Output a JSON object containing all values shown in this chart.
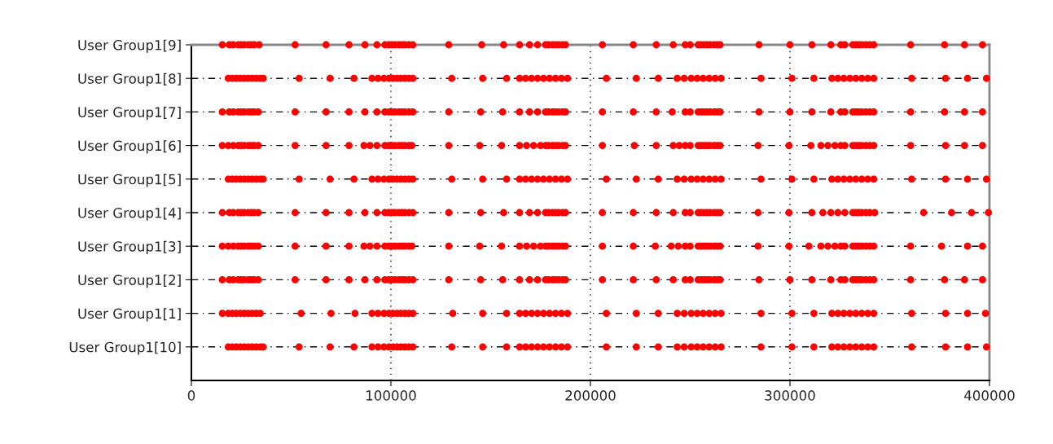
{
  "chart_data": {
    "type": "scatter",
    "orientation": "horizontal",
    "categories": [
      "User Group1[9]",
      "User Group1[8]",
      "User Group1[7]",
      "User Group1[6]",
      "User Group1[5]",
      "User Group1[4]",
      "User Group1[3]",
      "User Group1[2]",
      "User Group1[1]",
      "User Group1[10]"
    ],
    "series": [
      {
        "color": "#ff0000",
        "values": [
          15500,
          19000,
          21000,
          23500,
          25000,
          26500,
          28500,
          30000,
          31500,
          34000,
          52000,
          67500,
          79000,
          87000,
          93000,
          97000,
          99000,
          100500,
          102000,
          104000,
          105500,
          107000,
          109000,
          111000,
          129000,
          145500,
          156500,
          164500,
          169500,
          173500,
          177500,
          179000,
          181000,
          182500,
          184000,
          186000,
          187500,
          206000,
          221500,
          233000,
          241500,
          247500,
          250000,
          254000,
          255500,
          257000,
          258500,
          260000,
          262000,
          263500,
          265000,
          284500,
          300000,
          311000,
          320500,
          325500,
          327500,
          331500,
          333000,
          334500,
          336000,
          338000,
          340000,
          342000,
          360500,
          377500,
          387500,
          396500
        ],
        "x": [
          "User Group1[9]",
          "User Group1[9]",
          "User Group1[9]",
          "User Group1[9]",
          "User Group1[9]",
          "User Group1[9]",
          "User Group1[9]",
          "User Group1[9]",
          "User Group1[9]",
          "User Group1[9]",
          "User Group1[9]",
          "User Group1[9]",
          "User Group1[9]",
          "User Group1[9]",
          "User Group1[9]",
          "User Group1[9]",
          "User Group1[9]",
          "User Group1[9]",
          "User Group1[9]",
          "User Group1[9]",
          "User Group1[9]",
          "User Group1[9]",
          "User Group1[9]",
          "User Group1[9]",
          "User Group1[9]",
          "User Group1[9]",
          "User Group1[9]",
          "User Group1[9]",
          "User Group1[9]",
          "User Group1[9]",
          "User Group1[9]",
          "User Group1[9]",
          "User Group1[9]",
          "User Group1[9]",
          "User Group1[9]",
          "User Group1[9]",
          "User Group1[9]",
          "User Group1[9]",
          "User Group1[9]",
          "User Group1[9]",
          "User Group1[9]",
          "User Group1[9]",
          "User Group1[9]",
          "User Group1[9]",
          "User Group1[9]",
          "User Group1[9]",
          "User Group1[9]",
          "User Group1[9]",
          "User Group1[9]",
          "User Group1[9]",
          "User Group1[9]",
          "User Group1[9]",
          "User Group1[9]",
          "User Group1[9]",
          "User Group1[9]",
          "User Group1[9]",
          "User Group1[9]",
          "User Group1[9]",
          "User Group1[9]",
          "User Group1[9]",
          "User Group1[9]",
          "User Group1[9]",
          "User Group1[9]",
          "User Group1[9]",
          "User Group1[9]",
          "User Group1[9]",
          "User Group1[9]",
          "User Group1[9]"
        ]
      },
      {
        "color": "#ff0000",
        "values": [
          18500,
          20500,
          22500,
          24500,
          26500,
          28500,
          30500,
          32500,
          34500,
          36000,
          54000,
          69500,
          81500,
          90500,
          93500,
          96500,
          99000,
          101000,
          103000,
          105000,
          107000,
          109000,
          111000,
          130500,
          146000,
          158000,
          164500,
          167500,
          170500,
          173500,
          176500,
          179500,
          182500,
          185500,
          188500,
          208000,
          223000,
          234000,
          243500,
          247000,
          250500,
          253500,
          256500,
          259500,
          262500,
          265500,
          285500,
          301000,
          312000,
          321000,
          324000,
          327000,
          330000,
          333000,
          336000,
          339000,
          342000,
          361000,
          378000,
          389000,
          398500
        ],
        "x": [
          "User Group1[8]",
          "User Group1[8]",
          "User Group1[8]",
          "User Group1[8]",
          "User Group1[8]",
          "User Group1[8]",
          "User Group1[8]",
          "User Group1[8]",
          "User Group1[8]",
          "User Group1[8]",
          "User Group1[8]",
          "User Group1[8]",
          "User Group1[8]",
          "User Group1[8]",
          "User Group1[8]",
          "User Group1[8]",
          "User Group1[8]",
          "User Group1[8]",
          "User Group1[8]",
          "User Group1[8]",
          "User Group1[8]",
          "User Group1[8]",
          "User Group1[8]",
          "User Group1[8]",
          "User Group1[8]",
          "User Group1[8]",
          "User Group1[8]",
          "User Group1[8]",
          "User Group1[8]",
          "User Group1[8]",
          "User Group1[8]",
          "User Group1[8]",
          "User Group1[8]",
          "User Group1[8]",
          "User Group1[8]",
          "User Group1[8]",
          "User Group1[8]",
          "User Group1[8]",
          "User Group1[8]",
          "User Group1[8]",
          "User Group1[8]",
          "User Group1[8]",
          "User Group1[8]",
          "User Group1[8]",
          "User Group1[8]",
          "User Group1[8]",
          "User Group1[8]",
          "User Group1[8]",
          "User Group1[8]",
          "User Group1[8]",
          "User Group1[8]",
          "User Group1[8]",
          "User Group1[8]",
          "User Group1[8]",
          "User Group1[8]",
          "User Group1[8]",
          "User Group1[8]",
          "User Group1[8]",
          "User Group1[8]",
          "User Group1[8]",
          "User Group1[8]"
        ]
      },
      {
        "color": "#ff0000",
        "values": [
          15500,
          19000,
          21000,
          23500,
          25000,
          26500,
          28500,
          30000,
          31500,
          33500,
          52000,
          67500,
          79000,
          87000,
          93000,
          97000,
          99000,
          100500,
          102000,
          104000,
          105500,
          107000,
          109000,
          111000,
          129000,
          145000,
          156000,
          164500,
          169500,
          173500,
          177500,
          179000,
          181000,
          182500,
          184000,
          186000,
          187500,
          206000,
          221500,
          233000,
          241000,
          247500,
          250000,
          254000,
          255500,
          257000,
          258500,
          260000,
          262000,
          263500,
          265000,
          284500,
          300000,
          311000,
          320500,
          325500,
          327500,
          331500,
          333000,
          334500,
          336000,
          338000,
          340000,
          342000,
          360500,
          377500,
          387500,
          396500
        ],
        "x": [
          "User Group1[7]",
          "User Group1[7]",
          "User Group1[7]",
          "User Group1[7]",
          "User Group1[7]",
          "User Group1[7]",
          "User Group1[7]",
          "User Group1[7]",
          "User Group1[7]",
          "User Group1[7]",
          "User Group1[7]",
          "User Group1[7]",
          "User Group1[7]",
          "User Group1[7]",
          "User Group1[7]",
          "User Group1[7]",
          "User Group1[7]",
          "User Group1[7]",
          "User Group1[7]",
          "User Group1[7]",
          "User Group1[7]",
          "User Group1[7]",
          "User Group1[7]",
          "User Group1[7]",
          "User Group1[7]",
          "User Group1[7]",
          "User Group1[7]",
          "User Group1[7]",
          "User Group1[7]",
          "User Group1[7]",
          "User Group1[7]",
          "User Group1[7]",
          "User Group1[7]",
          "User Group1[7]",
          "User Group1[7]",
          "User Group1[7]",
          "User Group1[7]",
          "User Group1[7]",
          "User Group1[7]",
          "User Group1[7]",
          "User Group1[7]",
          "User Group1[7]",
          "User Group1[7]",
          "User Group1[7]",
          "User Group1[7]",
          "User Group1[7]",
          "User Group1[7]",
          "User Group1[7]",
          "User Group1[7]",
          "User Group1[7]",
          "User Group1[7]",
          "User Group1[7]",
          "User Group1[7]",
          "User Group1[7]",
          "User Group1[7]",
          "User Group1[7]",
          "User Group1[7]",
          "User Group1[7]",
          "User Group1[7]",
          "User Group1[7]",
          "User Group1[7]",
          "User Group1[7]",
          "User Group1[7]",
          "User Group1[7]",
          "User Group1[7]",
          "User Group1[7]",
          "User Group1[7]",
          "User Group1[7]"
        ]
      },
      {
        "color": "#ff0000",
        "values": [
          15500,
          18500,
          21000,
          23500,
          25000,
          26500,
          28500,
          30000,
          31500,
          33500,
          52000,
          67500,
          79000,
          86500,
          89500,
          93000,
          97000,
          99000,
          100500,
          102000,
          104000,
          105500,
          107000,
          109000,
          110500,
          129000,
          144500,
          155500,
          164500,
          168000,
          171500,
          175000,
          177500,
          179000,
          181000,
          182500,
          184000,
          186000,
          187500,
          206000,
          222000,
          233000,
          241500,
          244500,
          247500,
          250000,
          254000,
          255500,
          257000,
          258500,
          260000,
          262000,
          263500,
          265000,
          284000,
          299500,
          310500,
          315500,
          319000,
          322500,
          325500,
          327500,
          331500,
          333000,
          334500,
          336000,
          338000,
          340000,
          342000,
          360500,
          378000,
          387500,
          396500
        ],
        "x": [
          "User Group1[6]",
          "User Group1[6]",
          "User Group1[6]",
          "User Group1[6]",
          "User Group1[6]",
          "User Group1[6]",
          "User Group1[6]",
          "User Group1[6]",
          "User Group1[6]",
          "User Group1[6]",
          "User Group1[6]",
          "User Group1[6]",
          "User Group1[6]",
          "User Group1[6]",
          "User Group1[6]",
          "User Group1[6]",
          "User Group1[6]",
          "User Group1[6]",
          "User Group1[6]",
          "User Group1[6]",
          "User Group1[6]",
          "User Group1[6]",
          "User Group1[6]",
          "User Group1[6]",
          "User Group1[6]",
          "User Group1[6]",
          "User Group1[6]",
          "User Group1[6]",
          "User Group1[6]",
          "User Group1[6]",
          "User Group1[6]",
          "User Group1[6]",
          "User Group1[6]",
          "User Group1[6]",
          "User Group1[6]",
          "User Group1[6]",
          "User Group1[6]",
          "User Group1[6]",
          "User Group1[6]",
          "User Group1[6]",
          "User Group1[6]",
          "User Group1[6]",
          "User Group1[6]",
          "User Group1[6]",
          "User Group1[6]",
          "User Group1[6]",
          "User Group1[6]",
          "User Group1[6]",
          "User Group1[6]",
          "User Group1[6]",
          "User Group1[6]",
          "User Group1[6]",
          "User Group1[6]",
          "User Group1[6]",
          "User Group1[6]",
          "User Group1[6]",
          "User Group1[6]",
          "User Group1[6]",
          "User Group1[6]",
          "User Group1[6]",
          "User Group1[6]",
          "User Group1[6]",
          "User Group1[6]",
          "User Group1[6]",
          "User Group1[6]",
          "User Group1[6]",
          "User Group1[6]",
          "User Group1[6]",
          "User Group1[6]",
          "User Group1[6]",
          "User Group1[6]",
          "User Group1[6]",
          "User Group1[6]"
        ]
      },
      {
        "color": "#ff0000",
        "values": [
          18500,
          20500,
          22500,
          24500,
          26500,
          28500,
          30500,
          32500,
          34500,
          36000,
          54000,
          69500,
          81500,
          90500,
          93500,
          96500,
          99000,
          101000,
          103000,
          105000,
          107000,
          109000,
          111000,
          130500,
          146000,
          158000,
          164500,
          167500,
          170500,
          173500,
          176500,
          179500,
          182500,
          185500,
          188500,
          208000,
          223000,
          234000,
          243500,
          247000,
          250500,
          253500,
          256500,
          259500,
          262500,
          265500,
          285500,
          301000,
          312000,
          321000,
          324000,
          327000,
          330000,
          333000,
          336000,
          339000,
          342000,
          361000,
          378000,
          389000,
          398500
        ],
        "x": [
          "User Group1[5]",
          "User Group1[5]",
          "User Group1[5]",
          "User Group1[5]",
          "User Group1[5]",
          "User Group1[5]",
          "User Group1[5]",
          "User Group1[5]",
          "User Group1[5]",
          "User Group1[5]",
          "User Group1[5]",
          "User Group1[5]",
          "User Group1[5]",
          "User Group1[5]",
          "User Group1[5]",
          "User Group1[5]",
          "User Group1[5]",
          "User Group1[5]",
          "User Group1[5]",
          "User Group1[5]",
          "User Group1[5]",
          "User Group1[5]",
          "User Group1[5]",
          "User Group1[5]",
          "User Group1[5]",
          "User Group1[5]",
          "User Group1[5]",
          "User Group1[5]",
          "User Group1[5]",
          "User Group1[5]",
          "User Group1[5]",
          "User Group1[5]",
          "User Group1[5]",
          "User Group1[5]",
          "User Group1[5]",
          "User Group1[5]",
          "User Group1[5]",
          "User Group1[5]",
          "User Group1[5]",
          "User Group1[5]",
          "User Group1[5]",
          "User Group1[5]",
          "User Group1[5]",
          "User Group1[5]",
          "User Group1[5]",
          "User Group1[5]",
          "User Group1[5]",
          "User Group1[5]",
          "User Group1[5]",
          "User Group1[5]",
          "User Group1[5]",
          "User Group1[5]",
          "User Group1[5]",
          "User Group1[5]",
          "User Group1[5]",
          "User Group1[5]",
          "User Group1[5]",
          "User Group1[5]",
          "User Group1[5]",
          "User Group1[5]",
          "User Group1[5]"
        ]
      },
      {
        "color": "#ff0000",
        "values": [
          15500,
          19000,
          21000,
          23500,
          25000,
          26500,
          28500,
          30000,
          31500,
          33500,
          52000,
          67500,
          79000,
          87000,
          93000,
          97000,
          99000,
          100500,
          102000,
          104000,
          105500,
          107000,
          109000,
          111000,
          129000,
          145000,
          156500,
          164500,
          169500,
          173500,
          177500,
          179000,
          181000,
          182500,
          184000,
          186000,
          187500,
          206000,
          221500,
          233000,
          241500,
          247500,
          250000,
          254000,
          255500,
          257000,
          258500,
          260000,
          262000,
          263500,
          265000,
          284000,
          299500,
          311000,
          316500,
          320500,
          324000,
          327500,
          331500,
          333000,
          334500,
          336000,
          338000,
          340000,
          342500,
          367000,
          381000,
          391000,
          399500
        ],
        "x": [
          "User Group1[4]",
          "User Group1[4]",
          "User Group1[4]",
          "User Group1[4]",
          "User Group1[4]",
          "User Group1[4]",
          "User Group1[4]",
          "User Group1[4]",
          "User Group1[4]",
          "User Group1[4]",
          "User Group1[4]",
          "User Group1[4]",
          "User Group1[4]",
          "User Group1[4]",
          "User Group1[4]",
          "User Group1[4]",
          "User Group1[4]",
          "User Group1[4]",
          "User Group1[4]",
          "User Group1[4]",
          "User Group1[4]",
          "User Group1[4]",
          "User Group1[4]",
          "User Group1[4]",
          "User Group1[4]",
          "User Group1[4]",
          "User Group1[4]",
          "User Group1[4]",
          "User Group1[4]",
          "User Group1[4]",
          "User Group1[4]",
          "User Group1[4]",
          "User Group1[4]",
          "User Group1[4]",
          "User Group1[4]",
          "User Group1[4]",
          "User Group1[4]",
          "User Group1[4]",
          "User Group1[4]",
          "User Group1[4]",
          "User Group1[4]",
          "User Group1[4]",
          "User Group1[4]",
          "User Group1[4]",
          "User Group1[4]",
          "User Group1[4]",
          "User Group1[4]",
          "User Group1[4]",
          "User Group1[4]",
          "User Group1[4]",
          "User Group1[4]",
          "User Group1[4]",
          "User Group1[4]",
          "User Group1[4]",
          "User Group1[4]",
          "User Group1[4]",
          "User Group1[4]",
          "User Group1[4]",
          "User Group1[4]",
          "User Group1[4]",
          "User Group1[4]",
          "User Group1[4]",
          "User Group1[4]",
          "User Group1[4]",
          "User Group1[4]",
          "User Group1[4]",
          "User Group1[4]",
          "User Group1[4]",
          "User Group1[4]"
        ]
      },
      {
        "color": "#ff0000",
        "values": [
          15500,
          18500,
          21000,
          23500,
          25000,
          26500,
          28500,
          30000,
          31500,
          33500,
          52000,
          67500,
          79000,
          86500,
          89500,
          93000,
          97000,
          99000,
          100500,
          102000,
          104000,
          105500,
          107000,
          109000,
          110500,
          129000,
          144500,
          155500,
          164500,
          168000,
          171500,
          175000,
          177500,
          179000,
          181000,
          182500,
          184000,
          186000,
          187500,
          206000,
          221500,
          232500,
          240500,
          244000,
          247500,
          250000,
          254000,
          255500,
          257000,
          258500,
          260000,
          262000,
          263500,
          265000,
          284000,
          299500,
          309500,
          315500,
          319000,
          322500,
          325500,
          327500,
          331500,
          333000,
          334500,
          336000,
          338000,
          340000,
          342000,
          360500,
          376000,
          389000,
          396500
        ],
        "x": [
          "User Group1[3]",
          "User Group1[3]",
          "User Group1[3]",
          "User Group1[3]",
          "User Group1[3]",
          "User Group1[3]",
          "User Group1[3]",
          "User Group1[3]",
          "User Group1[3]",
          "User Group1[3]",
          "User Group1[3]",
          "User Group1[3]",
          "User Group1[3]",
          "User Group1[3]",
          "User Group1[3]",
          "User Group1[3]",
          "User Group1[3]",
          "User Group1[3]",
          "User Group1[3]",
          "User Group1[3]",
          "User Group1[3]",
          "User Group1[3]",
          "User Group1[3]",
          "User Group1[3]",
          "User Group1[3]",
          "User Group1[3]",
          "User Group1[3]",
          "User Group1[3]",
          "User Group1[3]",
          "User Group1[3]",
          "User Group1[3]",
          "User Group1[3]",
          "User Group1[3]",
          "User Group1[3]",
          "User Group1[3]",
          "User Group1[3]",
          "User Group1[3]",
          "User Group1[3]",
          "User Group1[3]",
          "User Group1[3]",
          "User Group1[3]",
          "User Group1[3]",
          "User Group1[3]",
          "User Group1[3]",
          "User Group1[3]",
          "User Group1[3]",
          "User Group1[3]",
          "User Group1[3]",
          "User Group1[3]",
          "User Group1[3]",
          "User Group1[3]",
          "User Group1[3]",
          "User Group1[3]",
          "User Group1[3]",
          "User Group1[3]",
          "User Group1[3]",
          "User Group1[3]",
          "User Group1[3]",
          "User Group1[3]",
          "User Group1[3]",
          "User Group1[3]",
          "User Group1[3]",
          "User Group1[3]",
          "User Group1[3]",
          "User Group1[3]",
          "User Group1[3]",
          "User Group1[3]",
          "User Group1[3]",
          "User Group1[3]",
          "User Group1[3]",
          "User Group1[3]",
          "User Group1[3]",
          "User Group1[3]"
        ]
      },
      {
        "color": "#ff0000",
        "values": [
          15500,
          19000,
          21000,
          23500,
          25000,
          26500,
          28500,
          30000,
          31500,
          33500,
          52000,
          67500,
          79000,
          87000,
          93000,
          97000,
          99000,
          100500,
          102000,
          104000,
          105500,
          107000,
          109000,
          111000,
          129000,
          145000,
          156000,
          164500,
          169500,
          173500,
          177500,
          179000,
          181000,
          182500,
          184000,
          186000,
          187500,
          206000,
          221500,
          233000,
          241500,
          247500,
          250000,
          254000,
          255500,
          257000,
          258500,
          260000,
          262000,
          263500,
          265000,
          284500,
          300000,
          311000,
          320500,
          325500,
          327500,
          331500,
          333000,
          334500,
          336000,
          338000,
          340000,
          342000,
          360500,
          377500,
          387500,
          396500
        ],
        "x": [
          "User Group1[2]",
          "User Group1[2]",
          "User Group1[2]",
          "User Group1[2]",
          "User Group1[2]",
          "User Group1[2]",
          "User Group1[2]",
          "User Group1[2]",
          "User Group1[2]",
          "User Group1[2]",
          "User Group1[2]",
          "User Group1[2]",
          "User Group1[2]",
          "User Group1[2]",
          "User Group1[2]",
          "User Group1[2]",
          "User Group1[2]",
          "User Group1[2]",
          "User Group1[2]",
          "User Group1[2]",
          "User Group1[2]",
          "User Group1[2]",
          "User Group1[2]",
          "User Group1[2]",
          "User Group1[2]",
          "User Group1[2]",
          "User Group1[2]",
          "User Group1[2]",
          "User Group1[2]",
          "User Group1[2]",
          "User Group1[2]",
          "User Group1[2]",
          "User Group1[2]",
          "User Group1[2]",
          "User Group1[2]",
          "User Group1[2]",
          "User Group1[2]",
          "User Group1[2]",
          "User Group1[2]",
          "User Group1[2]",
          "User Group1[2]",
          "User Group1[2]",
          "User Group1[2]",
          "User Group1[2]",
          "User Group1[2]",
          "User Group1[2]",
          "User Group1[2]",
          "User Group1[2]",
          "User Group1[2]",
          "User Group1[2]",
          "User Group1[2]",
          "User Group1[2]",
          "User Group1[2]",
          "User Group1[2]",
          "User Group1[2]",
          "User Group1[2]",
          "User Group1[2]",
          "User Group1[2]",
          "User Group1[2]",
          "User Group1[2]",
          "User Group1[2]",
          "User Group1[2]",
          "User Group1[2]",
          "User Group1[2]",
          "User Group1[2]",
          "User Group1[2]",
          "User Group1[2]",
          "User Group1[2]"
        ]
      },
      {
        "color": "#ff0000",
        "values": [
          15500,
          18500,
          20500,
          22500,
          24500,
          26500,
          28500,
          30500,
          32500,
          34500,
          55000,
          70000,
          82000,
          90500,
          93500,
          96500,
          99000,
          101000,
          103000,
          105000,
          107000,
          109000,
          111000,
          131000,
          146000,
          158000,
          164500,
          167500,
          170500,
          173500,
          176500,
          179500,
          182500,
          185500,
          188500,
          208000,
          223000,
          234000,
          243500,
          247000,
          250500,
          253500,
          256500,
          259500,
          262500,
          265500,
          285500,
          301000,
          312000,
          321000,
          324000,
          327000,
          330000,
          333000,
          336000,
          339000,
          342000,
          361000,
          378000,
          389000,
          398000
        ],
        "x": [
          "User Group1[1]",
          "User Group1[1]",
          "User Group1[1]",
          "User Group1[1]",
          "User Group1[1]",
          "User Group1[1]",
          "User Group1[1]",
          "User Group1[1]",
          "User Group1[1]",
          "User Group1[1]",
          "User Group1[1]",
          "User Group1[1]",
          "User Group1[1]",
          "User Group1[1]",
          "User Group1[1]",
          "User Group1[1]",
          "User Group1[1]",
          "User Group1[1]",
          "User Group1[1]",
          "User Group1[1]",
          "User Group1[1]",
          "User Group1[1]",
          "User Group1[1]",
          "User Group1[1]",
          "User Group1[1]",
          "User Group1[1]",
          "User Group1[1]",
          "User Group1[1]",
          "User Group1[1]",
          "User Group1[1]",
          "User Group1[1]",
          "User Group1[1]",
          "User Group1[1]",
          "User Group1[1]",
          "User Group1[1]",
          "User Group1[1]",
          "User Group1[1]",
          "User Group1[1]",
          "User Group1[1]",
          "User Group1[1]",
          "User Group1[1]",
          "User Group1[1]",
          "User Group1[1]",
          "User Group1[1]",
          "User Group1[1]",
          "User Group1[1]",
          "User Group1[1]",
          "User Group1[1]",
          "User Group1[1]",
          "User Group1[1]",
          "User Group1[1]",
          "User Group1[1]",
          "User Group1[1]",
          "User Group1[1]",
          "User Group1[1]",
          "User Group1[1]",
          "User Group1[1]",
          "User Group1[1]",
          "User Group1[1]",
          "User Group1[1]",
          "User Group1[1]"
        ]
      },
      {
        "color": "#ff0000",
        "values": [
          18500,
          20500,
          22500,
          24500,
          26500,
          28500,
          30500,
          32500,
          34500,
          36000,
          54000,
          69500,
          81500,
          90500,
          93500,
          96500,
          99000,
          101000,
          103000,
          105000,
          107000,
          109000,
          111000,
          130500,
          146000,
          158000,
          164500,
          167500,
          170500,
          173500,
          176500,
          179500,
          182500,
          185500,
          188500,
          208000,
          223000,
          234000,
          243500,
          247000,
          250500,
          253500,
          256500,
          259500,
          262500,
          265500,
          285500,
          301000,
          312000,
          321000,
          324000,
          327000,
          330000,
          333000,
          336000,
          339000,
          342000,
          361000,
          378000,
          389000,
          398500
        ],
        "x": [
          "User Group1[10]",
          "User Group1[10]",
          "User Group1[10]",
          "User Group1[10]",
          "User Group1[10]",
          "User Group1[10]",
          "User Group1[10]",
          "User Group1[10]",
          "User Group1[10]",
          "User Group1[10]",
          "User Group1[10]",
          "User Group1[10]",
          "User Group1[10]",
          "User Group1[10]",
          "User Group1[10]",
          "User Group1[10]",
          "User Group1[10]",
          "User Group1[10]",
          "User Group1[10]",
          "User Group1[10]",
          "User Group1[10]",
          "User Group1[10]",
          "User Group1[10]",
          "User Group1[10]",
          "User Group1[10]",
          "User Group1[10]",
          "User Group1[10]",
          "User Group1[10]",
          "User Group1[10]",
          "User Group1[10]",
          "User Group1[10]",
          "User Group1[10]",
          "User Group1[10]",
          "User Group1[10]",
          "User Group1[10]",
          "User Group1[10]",
          "User Group1[10]",
          "User Group1[10]",
          "User Group1[10]",
          "User Group1[10]",
          "User Group1[10]",
          "User Group1[10]",
          "User Group1[10]",
          "User Group1[10]",
          "User Group1[10]",
          "User Group1[10]",
          "User Group1[10]",
          "User Group1[10]",
          "User Group1[10]",
          "User Group1[10]",
          "User Group1[10]",
          "User Group1[10]",
          "User Group1[10]",
          "User Group1[10]",
          "User Group1[10]",
          "User Group1[10]",
          "User Group1[10]",
          "User Group1[10]",
          "User Group1[10]",
          "User Group1[10]",
          "User Group1[10]"
        ]
      }
    ],
    "xlim": [
      0,
      400000
    ],
    "xticks": [
      0,
      100000,
      200000,
      300000,
      400000
    ],
    "grid": true,
    "marker": "circle"
  }
}
